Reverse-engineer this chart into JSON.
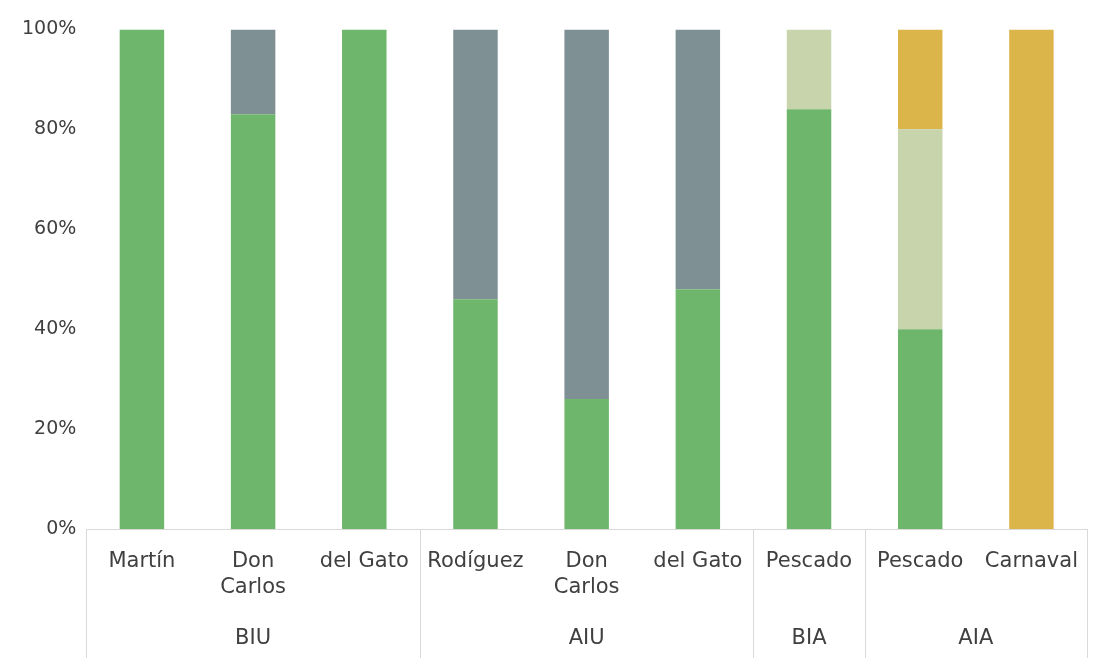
{
  "chart_data": {
    "type": "bar",
    "stacked": true,
    "categories": [
      "Martín",
      "Don Carlos",
      "del Gato",
      "Rodíguez",
      "Don Carlos",
      "del Gato",
      "Pescado",
      "Pescado",
      "Carnaval"
    ],
    "series": [
      {
        "color": "#6db66b",
        "values": [
          100,
          83,
          100,
          46,
          26,
          48,
          84,
          40,
          null
        ]
      },
      {
        "color": "#7f9094",
        "values": [
          null,
          17,
          null,
          54,
          74,
          52,
          null,
          null,
          null
        ]
      },
      {
        "color": "#c8d4ab",
        "values": [
          null,
          null,
          null,
          null,
          null,
          null,
          16,
          40,
          null
        ]
      },
      {
        "color": "#dbb44a",
        "values": [
          null,
          null,
          null,
          null,
          null,
          null,
          null,
          20,
          100
        ]
      }
    ],
    "ylim": [
      0,
      100
    ],
    "yticks": [
      {
        "value": 0,
        "label": "0%"
      },
      {
        "value": 20,
        "label": "20%"
      },
      {
        "value": 40,
        "label": "40%"
      },
      {
        "value": 60,
        "label": "60%"
      },
      {
        "value": 80,
        "label": "80%"
      },
      {
        "value": 100,
        "label": "100%"
      }
    ],
    "annotations": [
      "BIU",
      "AIU",
      "BIA",
      "AIA"
    ],
    "grid": false,
    "legend": false
  }
}
